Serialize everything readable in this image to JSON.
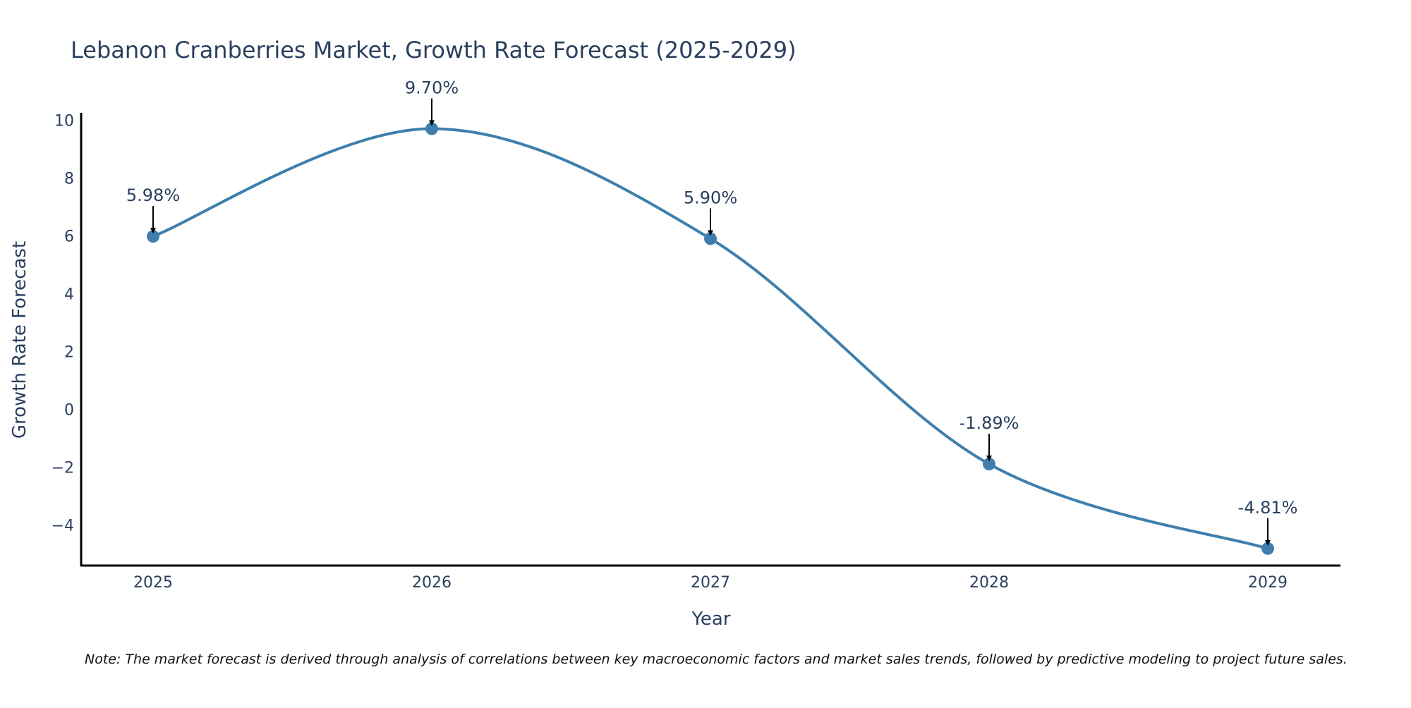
{
  "chart_data": {
    "type": "line",
    "title": "Lebanon Cranberries Market, Growth Rate Forecast (2025-2029)",
    "xlabel": "Year",
    "ylabel": "Growth Rate Forecast",
    "categories": [
      "2025",
      "2026",
      "2027",
      "2028",
      "2029"
    ],
    "values": [
      5.98,
      9.7,
      5.9,
      -1.89,
      -4.81
    ],
    "data_labels": [
      "5.98%",
      "9.70%",
      "5.90%",
      "-1.89%",
      "-4.81%"
    ],
    "y_ticks": [
      10,
      8,
      6,
      4,
      2,
      0,
      -2,
      -4
    ],
    "y_tick_labels": [
      "10",
      "8",
      "6",
      "4",
      "2",
      "0",
      "−2",
      "−4"
    ],
    "ylim": [
      -5.4,
      10.25
    ],
    "grid": false,
    "line_color": "#3f7fad",
    "marker_color": "#3f7fad",
    "annotation_arrow_color": "#000000",
    "note": "Note: The market forecast is derived through analysis of correlations between key macroeconomic factors and market sales trends, followed by predictive modeling to project future sales."
  }
}
